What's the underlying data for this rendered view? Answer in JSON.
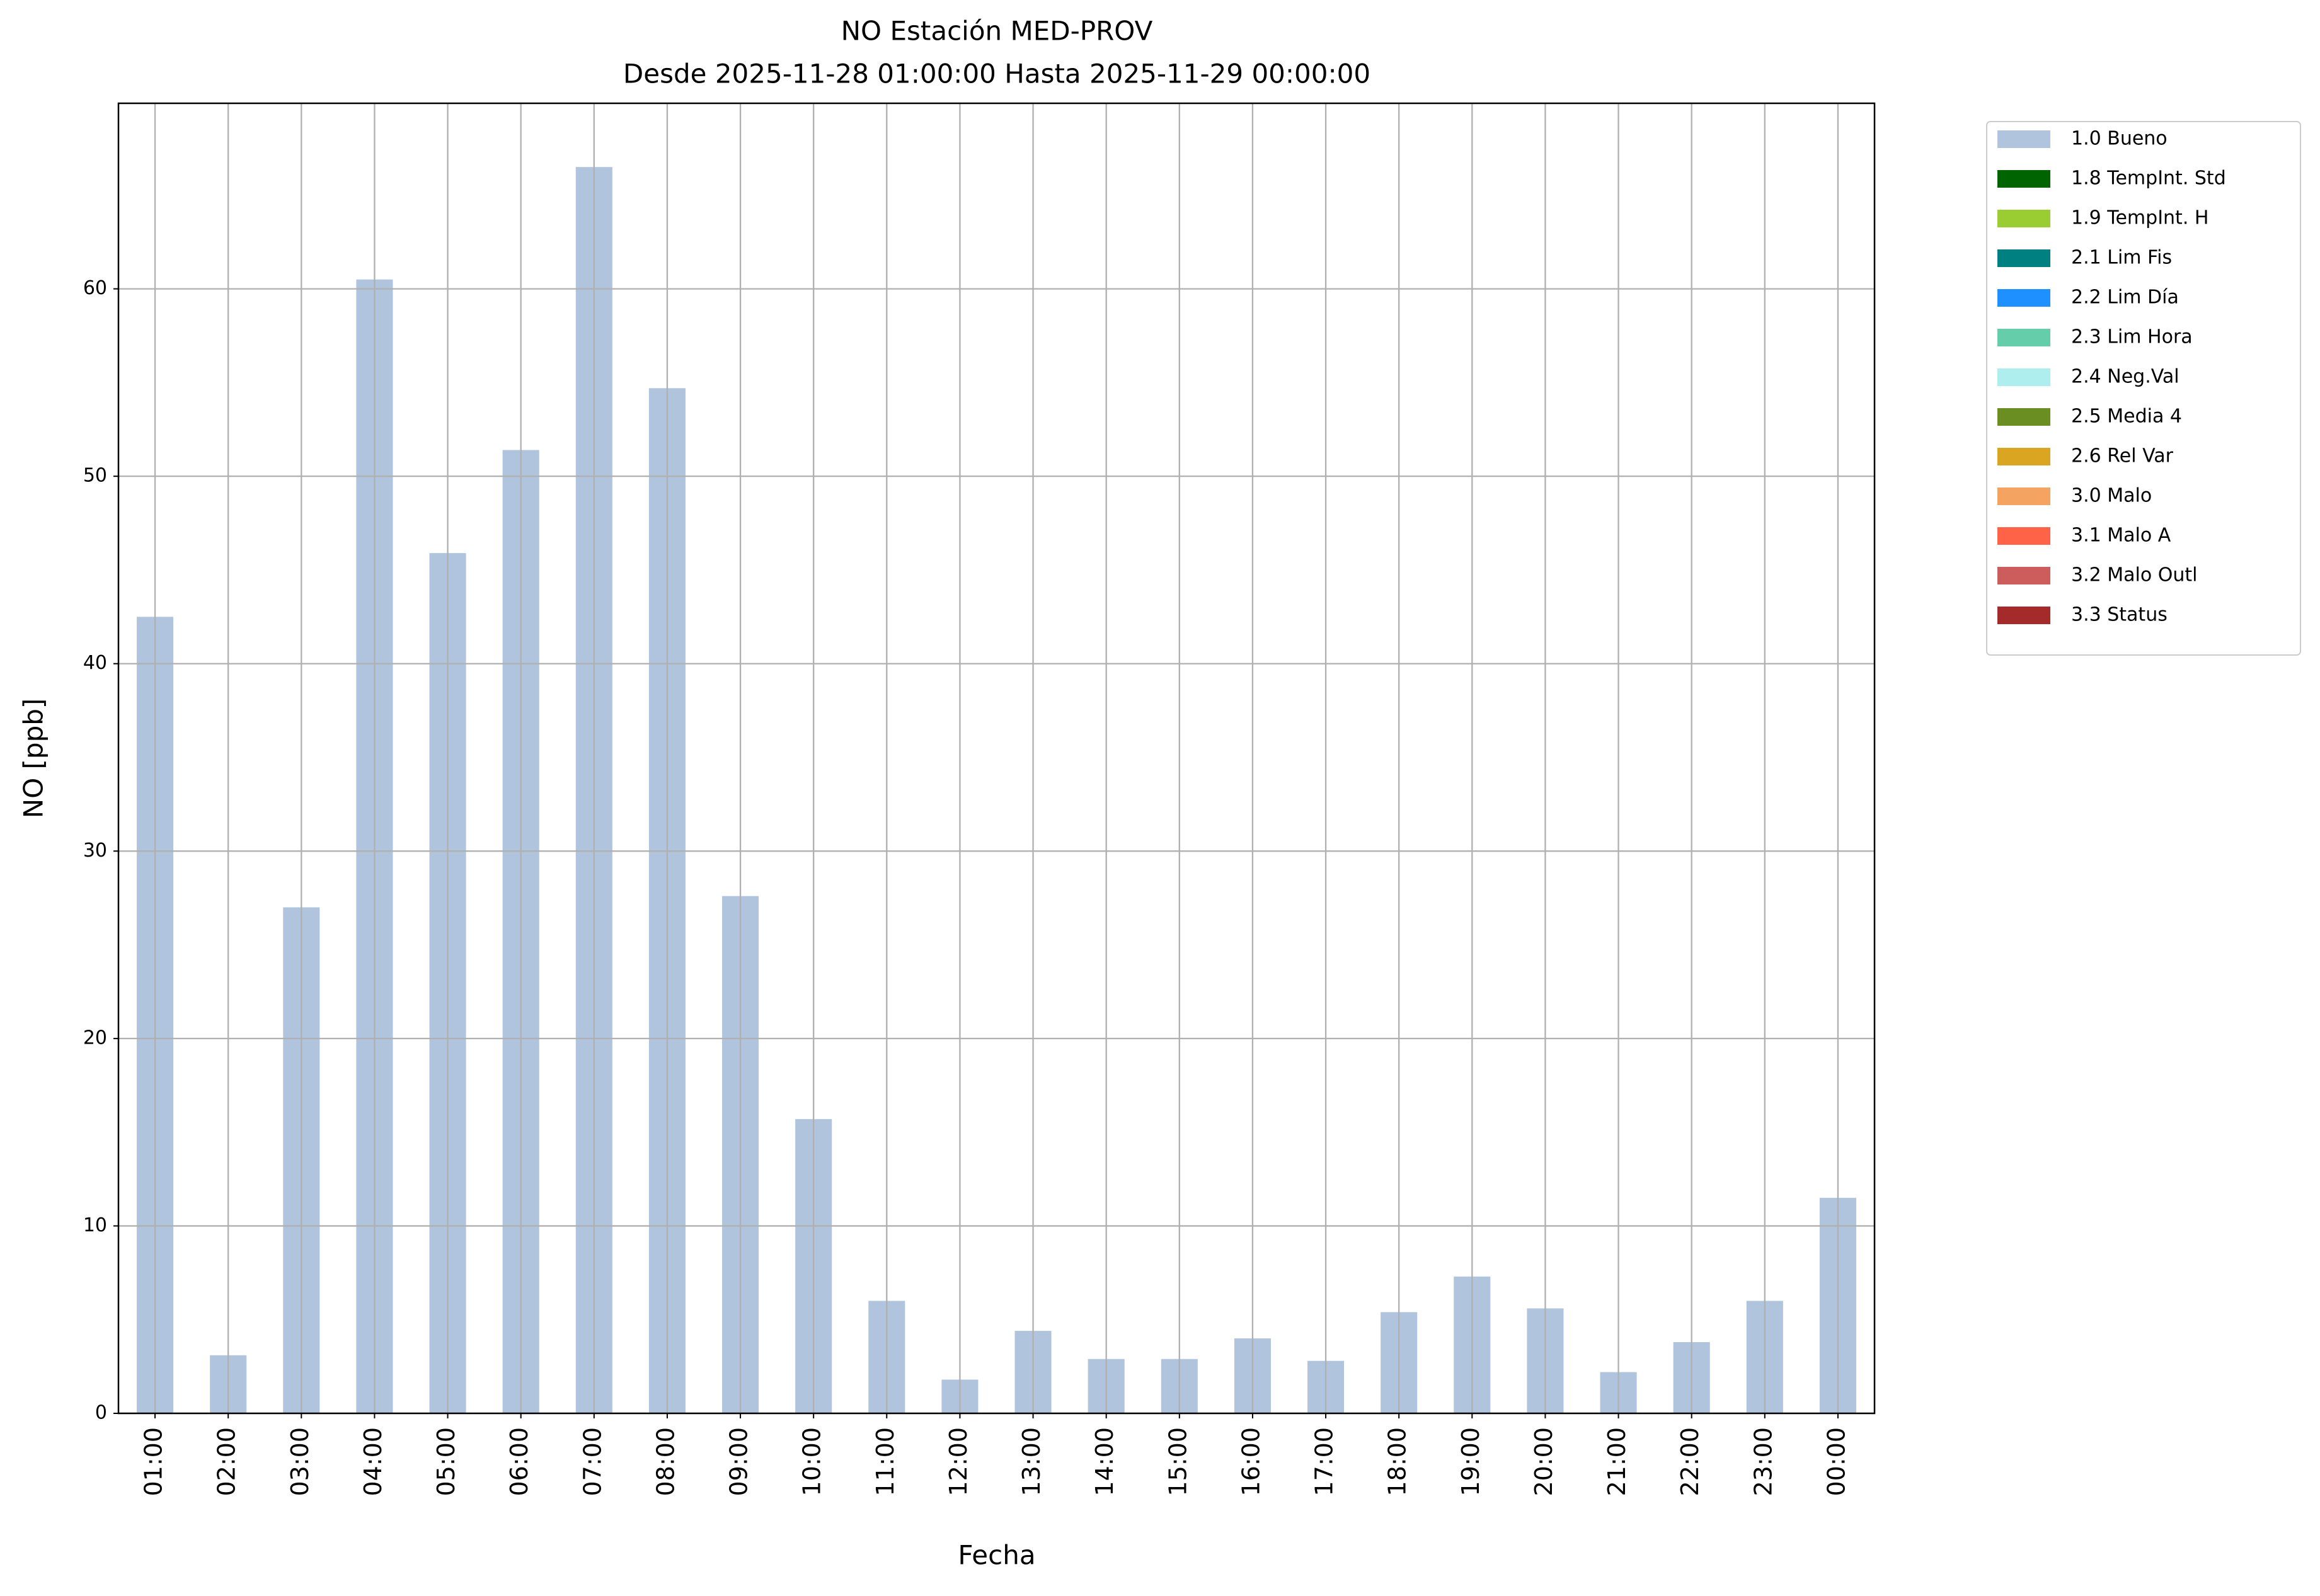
{
  "chart_data": {
    "type": "bar",
    "title": "NO Estación MED-PROV",
    "subtitle": "Desde 2025-11-28 01:00:00 Hasta 2025-11-29 00:00:00",
    "x_label": "Fecha",
    "y_label": "NO [ppb]",
    "categories": [
      "01:00",
      "02:00",
      "03:00",
      "04:00",
      "05:00",
      "06:00",
      "07:00",
      "08:00",
      "09:00",
      "10:00",
      "11:00",
      "12:00",
      "13:00",
      "14:00",
      "15:00",
      "16:00",
      "17:00",
      "18:00",
      "19:00",
      "20:00",
      "21:00",
      "22:00",
      "23:00",
      "00:00"
    ],
    "series": [
      {
        "name": "1.0 Bueno",
        "color": "#b0c4de",
        "values": [
          42.5,
          3.1,
          27.0,
          60.5,
          45.9,
          51.4,
          66.5,
          54.7,
          27.6,
          15.7,
          6.0,
          1.8,
          4.4,
          2.9,
          2.9,
          4.0,
          2.8,
          5.4,
          7.3,
          5.6,
          2.2,
          3.8,
          6.0,
          11.5
        ]
      },
      {
        "name": "1.8 TempInt. Std",
        "color": "#006400"
      },
      {
        "name": "1.9 TempInt. H",
        "color": "#9acd32"
      },
      {
        "name": "2.1 Lim Fis",
        "color": "#008080"
      },
      {
        "name": "2.2 Lim Día",
        "color": "#1e90ff"
      },
      {
        "name": "2.3 Lim Hora",
        "color": "#66cdaa"
      },
      {
        "name": "2.4 Neg.Val",
        "color": "#afeeee"
      },
      {
        "name": "2.5 Media 4",
        "color": "#6b8e23"
      },
      {
        "name": "2.6 Rel Var",
        "color": "#daa520"
      },
      {
        "name": "3.0 Malo",
        "color": "#f4a460"
      },
      {
        "name": "3.1 Malo A",
        "color": "#ff6347"
      },
      {
        "name": "3.2 Malo Outl",
        "color": "#cd5c5c"
      },
      {
        "name": "3.3 Status",
        "color": "#a52a2a"
      }
    ],
    "ylim": [
      0,
      69.9
    ],
    "yticks": [
      0,
      10,
      20,
      30,
      40,
      50,
      60
    ],
    "grid": true,
    "legend": "outside-upper-right"
  }
}
